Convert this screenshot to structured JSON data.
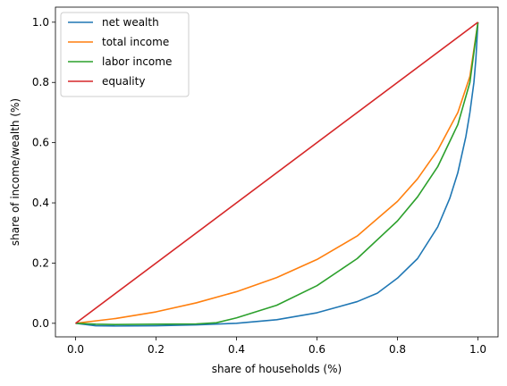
{
  "chart_data": {
    "type": "line",
    "title": "",
    "xlabel": "share of households (%)",
    "ylabel": "share of income/wealth (%)",
    "xlim": [
      -0.05,
      1.05
    ],
    "ylim": [
      -0.045,
      1.05
    ],
    "xticks": [
      "0.0",
      "0.2",
      "0.4",
      "0.6",
      "0.8",
      "1.0"
    ],
    "yticks": [
      "0.0",
      "0.2",
      "0.4",
      "0.6",
      "0.8",
      "1.0"
    ],
    "grid": false,
    "legend_position": "top-left",
    "series": [
      {
        "name": "net wealth",
        "color": "#1f77b4",
        "x": [
          0,
          0.05,
          0.1,
          0.2,
          0.3,
          0.4,
          0.5,
          0.6,
          0.7,
          0.75,
          0.8,
          0.85,
          0.9,
          0.93,
          0.95,
          0.97,
          0.98,
          0.99,
          0.995,
          1.0
        ],
        "y": [
          0,
          -0.008,
          -0.009,
          -0.008,
          -0.005,
          0.0,
          0.012,
          0.035,
          0.072,
          0.1,
          0.15,
          0.215,
          0.32,
          0.415,
          0.5,
          0.62,
          0.7,
          0.8,
          0.88,
          1.0
        ]
      },
      {
        "name": "total income",
        "color": "#ff7f0e",
        "x": [
          0,
          0.05,
          0.1,
          0.2,
          0.3,
          0.4,
          0.5,
          0.6,
          0.7,
          0.8,
          0.85,
          0.9,
          0.95,
          0.98,
          1.0
        ],
        "y": [
          0,
          0.008,
          0.016,
          0.038,
          0.068,
          0.105,
          0.152,
          0.212,
          0.29,
          0.405,
          0.48,
          0.575,
          0.7,
          0.82,
          1.0
        ]
      },
      {
        "name": "labor income",
        "color": "#2ca02c",
        "x": [
          0,
          0.05,
          0.1,
          0.2,
          0.3,
          0.35,
          0.4,
          0.5,
          0.6,
          0.7,
          0.8,
          0.85,
          0.9,
          0.95,
          0.98,
          1.0
        ],
        "y": [
          0,
          -0.003,
          -0.004,
          -0.003,
          -0.002,
          0.002,
          0.018,
          0.06,
          0.125,
          0.215,
          0.34,
          0.42,
          0.52,
          0.66,
          0.8,
          1.0
        ]
      },
      {
        "name": "equality",
        "color": "#d62728",
        "x": [
          0,
          1.0
        ],
        "y": [
          0,
          1.0
        ]
      }
    ]
  }
}
